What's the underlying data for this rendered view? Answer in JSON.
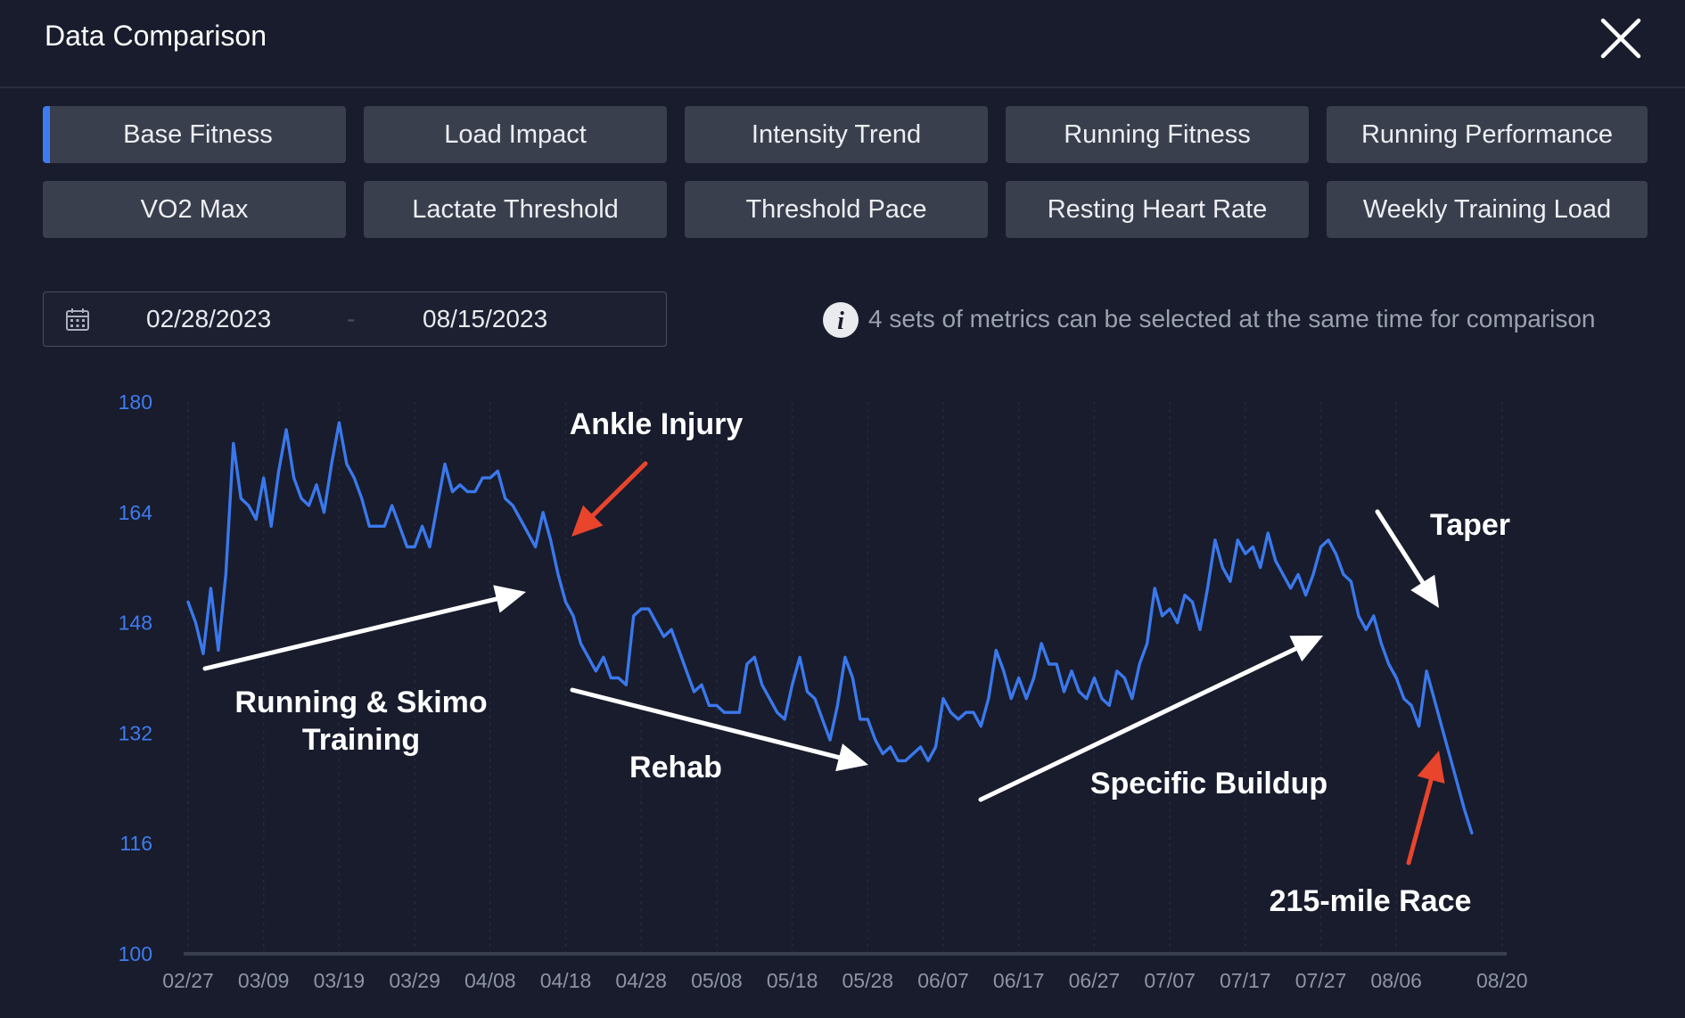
{
  "header": {
    "title": "Data Comparison"
  },
  "metrics": [
    {
      "label": "Base Fitness",
      "selected": true
    },
    {
      "label": "Load Impact",
      "selected": false
    },
    {
      "label": "Intensity Trend",
      "selected": false
    },
    {
      "label": "Running Fitness",
      "selected": false
    },
    {
      "label": "Running Performance",
      "selected": false
    },
    {
      "label": "VO2 Max",
      "selected": false
    },
    {
      "label": "Lactate Threshold",
      "selected": false
    },
    {
      "label": "Threshold Pace",
      "selected": false
    },
    {
      "label": "Resting Heart Rate",
      "selected": false
    },
    {
      "label": "Weekly Training Load",
      "selected": false
    }
  ],
  "date_range": {
    "start": "02/28/2023",
    "separator": "-",
    "end": "08/15/2023"
  },
  "info": {
    "text": "4 sets of metrics can be selected at the same time for comparison"
  },
  "colors": {
    "accent": "#3f7bf0",
    "line": "#3a78ec",
    "arrow_red": "#e8452c",
    "arrow_white": "#ffffff"
  },
  "chart_data": {
    "type": "line",
    "title": "",
    "xlabel": "",
    "ylabel": "",
    "ylim": [
      100,
      180
    ],
    "yticks": [
      100,
      116,
      132,
      148,
      164,
      180
    ],
    "x_start": "2023-02-27",
    "xticks": [
      "02/27",
      "03/09",
      "03/19",
      "03/29",
      "04/08",
      "04/18",
      "04/28",
      "05/08",
      "05/18",
      "05/28",
      "06/07",
      "06/17",
      "06/27",
      "07/07",
      "07/17",
      "07/27",
      "08/06",
      "08/20"
    ],
    "grid": true,
    "points": [
      [
        "2023-02-27",
        151
      ],
      [
        "2023-02-28",
        148
      ],
      [
        "2023-03-01",
        143.5
      ],
      [
        "2023-03-02",
        153
      ],
      [
        "2023-03-03",
        144
      ],
      [
        "2023-03-04",
        155
      ],
      [
        "2023-03-05",
        174
      ],
      [
        "2023-03-06",
        166
      ],
      [
        "2023-03-07",
        165
      ],
      [
        "2023-03-08",
        163
      ],
      [
        "2023-03-09",
        169
      ],
      [
        "2023-03-10",
        162
      ],
      [
        "2023-03-11",
        170
      ],
      [
        "2023-03-12",
        176
      ],
      [
        "2023-03-13",
        169
      ],
      [
        "2023-03-14",
        166
      ],
      [
        "2023-03-15",
        165
      ],
      [
        "2023-03-16",
        168
      ],
      [
        "2023-03-17",
        164
      ],
      [
        "2023-03-18",
        171
      ],
      [
        "2023-03-19",
        177
      ],
      [
        "2023-03-20",
        171
      ],
      [
        "2023-03-21",
        169
      ],
      [
        "2023-03-22",
        166
      ],
      [
        "2023-03-23",
        162
      ],
      [
        "2023-03-24",
        162
      ],
      [
        "2023-03-25",
        162
      ],
      [
        "2023-03-26",
        165
      ],
      [
        "2023-03-27",
        162
      ],
      [
        "2023-03-28",
        159
      ],
      [
        "2023-03-29",
        159
      ],
      [
        "2023-03-30",
        162
      ],
      [
        "2023-03-31",
        159
      ],
      [
        "2023-04-01",
        165
      ],
      [
        "2023-04-02",
        171
      ],
      [
        "2023-04-03",
        167
      ],
      [
        "2023-04-04",
        168
      ],
      [
        "2023-04-05",
        167
      ],
      [
        "2023-04-06",
        167
      ],
      [
        "2023-04-07",
        169
      ],
      [
        "2023-04-08",
        169
      ],
      [
        "2023-04-09",
        170
      ],
      [
        "2023-04-10",
        166
      ],
      [
        "2023-04-11",
        165
      ],
      [
        "2023-04-12",
        163
      ],
      [
        "2023-04-13",
        161
      ],
      [
        "2023-04-14",
        159
      ],
      [
        "2023-04-15",
        164
      ],
      [
        "2023-04-16",
        160
      ],
      [
        "2023-04-17",
        155
      ],
      [
        "2023-04-18",
        151
      ],
      [
        "2023-04-19",
        149
      ],
      [
        "2023-04-20",
        145
      ],
      [
        "2023-04-21",
        143
      ],
      [
        "2023-04-22",
        141
      ],
      [
        "2023-04-23",
        143
      ],
      [
        "2023-04-24",
        140
      ],
      [
        "2023-04-25",
        140
      ],
      [
        "2023-04-26",
        139
      ],
      [
        "2023-04-27",
        149
      ],
      [
        "2023-04-28",
        150
      ],
      [
        "2023-04-29",
        150
      ],
      [
        "2023-04-30",
        148
      ],
      [
        "2023-05-01",
        146
      ],
      [
        "2023-05-02",
        147
      ],
      [
        "2023-05-03",
        144
      ],
      [
        "2023-05-04",
        141
      ],
      [
        "2023-05-05",
        138
      ],
      [
        "2023-05-06",
        139
      ],
      [
        "2023-05-07",
        136
      ],
      [
        "2023-05-08",
        136
      ],
      [
        "2023-05-09",
        135
      ],
      [
        "2023-05-10",
        135
      ],
      [
        "2023-05-11",
        135
      ],
      [
        "2023-05-12",
        142
      ],
      [
        "2023-05-13",
        143
      ],
      [
        "2023-05-14",
        139
      ],
      [
        "2023-05-15",
        137
      ],
      [
        "2023-05-16",
        135
      ],
      [
        "2023-05-17",
        134
      ],
      [
        "2023-05-18",
        139
      ],
      [
        "2023-05-19",
        143
      ],
      [
        "2023-05-20",
        138
      ],
      [
        "2023-05-21",
        137
      ],
      [
        "2023-05-22",
        134
      ],
      [
        "2023-05-23",
        131
      ],
      [
        "2023-05-24",
        136
      ],
      [
        "2023-05-25",
        143
      ],
      [
        "2023-05-26",
        140
      ],
      [
        "2023-05-27",
        134
      ],
      [
        "2023-05-28",
        134
      ],
      [
        "2023-05-29",
        131
      ],
      [
        "2023-05-30",
        129
      ],
      [
        "2023-05-31",
        130
      ],
      [
        "2023-06-01",
        128
      ],
      [
        "2023-06-02",
        128
      ],
      [
        "2023-06-03",
        129
      ],
      [
        "2023-06-04",
        130
      ],
      [
        "2023-06-05",
        128
      ],
      [
        "2023-06-06",
        130
      ],
      [
        "2023-06-07",
        137
      ],
      [
        "2023-06-08",
        135
      ],
      [
        "2023-06-09",
        134
      ],
      [
        "2023-06-10",
        135
      ],
      [
        "2023-06-11",
        135
      ],
      [
        "2023-06-12",
        133
      ],
      [
        "2023-06-13",
        137
      ],
      [
        "2023-06-14",
        144
      ],
      [
        "2023-06-15",
        141
      ],
      [
        "2023-06-16",
        137
      ],
      [
        "2023-06-17",
        140
      ],
      [
        "2023-06-18",
        137
      ],
      [
        "2023-06-19",
        140
      ],
      [
        "2023-06-20",
        145
      ],
      [
        "2023-06-21",
        142
      ],
      [
        "2023-06-22",
        142
      ],
      [
        "2023-06-23",
        138
      ],
      [
        "2023-06-24",
        141
      ],
      [
        "2023-06-25",
        138
      ],
      [
        "2023-06-26",
        137
      ],
      [
        "2023-06-27",
        140
      ],
      [
        "2023-06-28",
        137
      ],
      [
        "2023-06-29",
        136
      ],
      [
        "2023-06-30",
        141
      ],
      [
        "2023-07-01",
        140
      ],
      [
        "2023-07-02",
        137
      ],
      [
        "2023-07-03",
        142
      ],
      [
        "2023-07-04",
        145
      ],
      [
        "2023-07-05",
        153
      ],
      [
        "2023-07-06",
        149
      ],
      [
        "2023-07-07",
        150
      ],
      [
        "2023-07-08",
        148
      ],
      [
        "2023-07-09",
        152
      ],
      [
        "2023-07-10",
        151
      ],
      [
        "2023-07-11",
        147
      ],
      [
        "2023-07-12",
        153
      ],
      [
        "2023-07-13",
        160
      ],
      [
        "2023-07-14",
        156
      ],
      [
        "2023-07-15",
        154
      ],
      [
        "2023-07-16",
        160
      ],
      [
        "2023-07-17",
        158
      ],
      [
        "2023-07-18",
        159
      ],
      [
        "2023-07-19",
        156
      ],
      [
        "2023-07-20",
        161
      ],
      [
        "2023-07-21",
        157
      ],
      [
        "2023-07-22",
        155
      ],
      [
        "2023-07-23",
        153
      ],
      [
        "2023-07-24",
        155
      ],
      [
        "2023-07-25",
        152
      ],
      [
        "2023-07-26",
        155
      ],
      [
        "2023-07-27",
        159
      ],
      [
        "2023-07-28",
        160
      ],
      [
        "2023-07-29",
        158
      ],
      [
        "2023-07-30",
        155
      ],
      [
        "2023-07-31",
        154
      ],
      [
        "2023-08-01",
        149
      ],
      [
        "2023-08-02",
        147
      ],
      [
        "2023-08-03",
        149
      ],
      [
        "2023-08-04",
        145
      ],
      [
        "2023-08-05",
        142
      ],
      [
        "2023-08-06",
        140
      ],
      [
        "2023-08-07",
        137
      ],
      [
        "2023-08-08",
        136
      ],
      [
        "2023-08-09",
        133
      ],
      [
        "2023-08-10",
        141
      ],
      [
        "2023-08-11",
        137
      ],
      [
        "2023-08-12",
        133
      ],
      [
        "2023-08-13",
        129
      ],
      [
        "2023-08-14",
        125
      ],
      [
        "2023-08-15",
        121
      ],
      [
        "2023-08-16",
        117.5
      ]
    ],
    "annotations": [
      {
        "text": "Ankle Injury",
        "lines": [
          "Ankle Injury"
        ]
      },
      {
        "text": "Running & Skimo Training",
        "lines": [
          "Running & Skimo",
          "Training"
        ]
      },
      {
        "text": "Rehab",
        "lines": [
          "Rehab"
        ]
      },
      {
        "text": "Specific Buildup",
        "lines": [
          "Specific Buildup"
        ]
      },
      {
        "text": "Taper",
        "lines": [
          "Taper"
        ]
      },
      {
        "text": "215-mile Race",
        "lines": [
          "215-mile Race"
        ]
      }
    ]
  }
}
